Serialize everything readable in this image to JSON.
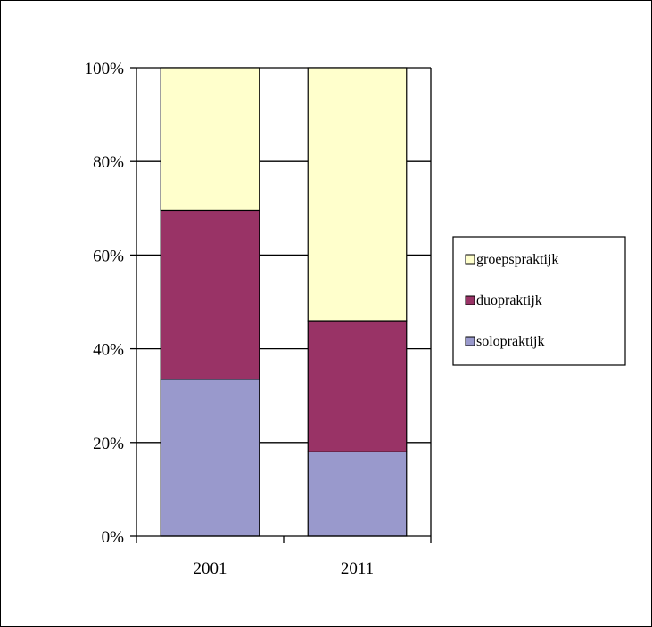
{
  "chart_data": {
    "type": "bar",
    "stacked": true,
    "percent": true,
    "categories": [
      "2001",
      "2011"
    ],
    "series": [
      {
        "name": "solopraktijk",
        "values": [
          33.5,
          18
        ],
        "color": "#9999cc"
      },
      {
        "name": "duopraktijk",
        "values": [
          36,
          28
        ],
        "color": "#993366"
      },
      {
        "name": "groepspraktijk",
        "values": [
          30.5,
          54
        ],
        "color": "#ffffcc"
      }
    ],
    "title": "",
    "xlabel": "",
    "ylabel": "",
    "ylim": [
      0,
      100
    ],
    "yticks": [
      "0%",
      "20%",
      "40%",
      "60%",
      "80%",
      "100%"
    ],
    "grid": true,
    "legend_position": "right",
    "legend_order": [
      "groepspraktijk",
      "duopraktijk",
      "solopraktijk"
    ]
  }
}
